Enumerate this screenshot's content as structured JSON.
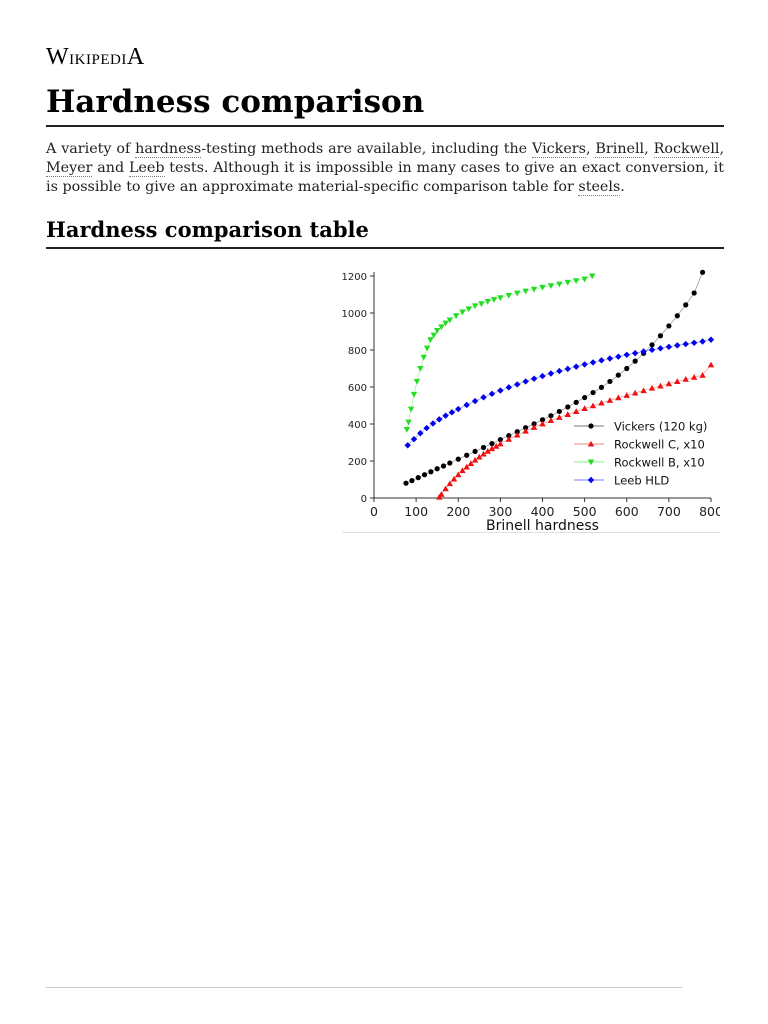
{
  "site": {
    "wordmark": "Wikipedia"
  },
  "article": {
    "title": "Hardness comparison",
    "intro": [
      {
        "t": "A variety of "
      },
      {
        "t": "hardness",
        "link": true
      },
      {
        "t": "-testing methods are available, including the "
      },
      {
        "t": "Vickers",
        "link": true
      },
      {
        "t": ", "
      },
      {
        "t": "Brinell",
        "link": true
      },
      {
        "t": ", "
      },
      {
        "t": "Rockwell",
        "link": true
      },
      {
        "t": ", "
      },
      {
        "t": "Meyer",
        "link": true
      },
      {
        "t": " and "
      },
      {
        "t": "Leeb",
        "link": true
      },
      {
        "t": " tests. Although it is impossible in many cases to give an exact conversion, it is possible to give an approximate material-specific comparison table for "
      },
      {
        "t": "steels",
        "link": true
      },
      {
        "t": "."
      }
    ],
    "section_title": "Hardness comparison table"
  },
  "chart_data": {
    "type": "scatter",
    "xlabel": "Brinell hardness",
    "ylabel": "",
    "xlim": [
      0,
      800
    ],
    "ylim": [
      0,
      1200
    ],
    "xticks": [
      0,
      100,
      200,
      300,
      400,
      500,
      600,
      700,
      800
    ],
    "yticks": [
      0,
      200,
      400,
      600,
      800,
      1000,
      1200
    ],
    "legend_position": "bottom-right",
    "series": [
      {
        "name": "Vickers (120 kg)",
        "color": "#000000",
        "marker": "circle",
        "x": [
          76,
          90,
          105,
          120,
          135,
          150,
          165,
          180,
          200,
          220,
          240,
          260,
          280,
          300,
          320,
          340,
          360,
          380,
          400,
          420,
          440,
          460,
          480,
          500,
          520,
          540,
          560,
          580,
          600,
          620,
          640,
          660,
          680,
          700,
          720,
          740,
          760,
          780
        ],
        "y": [
          80,
          94,
          110,
          126,
          142,
          158,
          173,
          189,
          210,
          231,
          252,
          273,
          294,
          316,
          337,
          358,
          380,
          401,
          423,
          445,
          468,
          492,
          517,
          543,
          570,
          598,
          630,
          664,
          700,
          740,
          782,
          828,
          877,
          930,
          985,
          1044,
          1108,
          1220
        ]
      },
      {
        "name": "Rockwell C, x10",
        "color": "#ee1111",
        "marker": "triangle-up",
        "x": [
          155,
          160,
          170,
          180,
          190,
          200,
          210,
          220,
          230,
          240,
          250,
          260,
          270,
          280,
          290,
          300,
          320,
          340,
          360,
          380,
          400,
          420,
          440,
          460,
          480,
          500,
          520,
          540,
          560,
          580,
          600,
          620,
          640,
          660,
          680,
          700,
          720,
          740,
          760,
          780,
          800
        ],
        "y": [
          5,
          20,
          50,
          78,
          103,
          126,
          148,
          168,
          187,
          205,
          222,
          238,
          253,
          267,
          280,
          293,
          318,
          341,
          362,
          382,
          401,
          419,
          436,
          452,
          468,
          484,
          499,
          514,
          528,
          542,
          555,
          568,
          581,
          594,
          606,
          618,
          630,
          642,
          653,
          664,
          720
        ]
      },
      {
        "name": "Rockwell B, x10",
        "color": "#22dd22",
        "marker": "triangle-down",
        "x": [
          78,
          82,
          88,
          95,
          102,
          110,
          118,
          126,
          134,
          142,
          150,
          160,
          170,
          180,
          195,
          210,
          225,
          240,
          255,
          270,
          285,
          300,
          320,
          340,
          360,
          380,
          400,
          420,
          440,
          460,
          480,
          500,
          518
        ],
        "y": [
          370,
          410,
          480,
          560,
          630,
          700,
          760,
          810,
          855,
          880,
          905,
          925,
          945,
          962,
          985,
          1005,
          1022,
          1038,
          1050,
          1062,
          1072,
          1082,
          1095,
          1107,
          1118,
          1128,
          1138,
          1147,
          1156,
          1165,
          1174,
          1183,
          1200
        ]
      },
      {
        "name": "Leeb HLD",
        "color": "#0000ee",
        "marker": "diamond",
        "x": [
          80,
          95,
          110,
          125,
          140,
          155,
          170,
          185,
          200,
          220,
          240,
          260,
          280,
          300,
          320,
          340,
          360,
          380,
          400,
          420,
          440,
          460,
          480,
          500,
          520,
          540,
          560,
          580,
          600,
          620,
          640,
          660,
          680,
          700,
          720,
          740,
          760,
          780,
          800
        ],
        "y": [
          285,
          318,
          350,
          378,
          403,
          425,
          445,
          463,
          481,
          503,
          524,
          544,
          563,
          581,
          598,
          614,
          630,
          645,
          659,
          673,
          686,
          698,
          710,
          722,
          733,
          744,
          754,
          764,
          774,
          783,
          792,
          801,
          809,
          817,
          825,
          832,
          839,
          846,
          856
        ]
      }
    ]
  }
}
